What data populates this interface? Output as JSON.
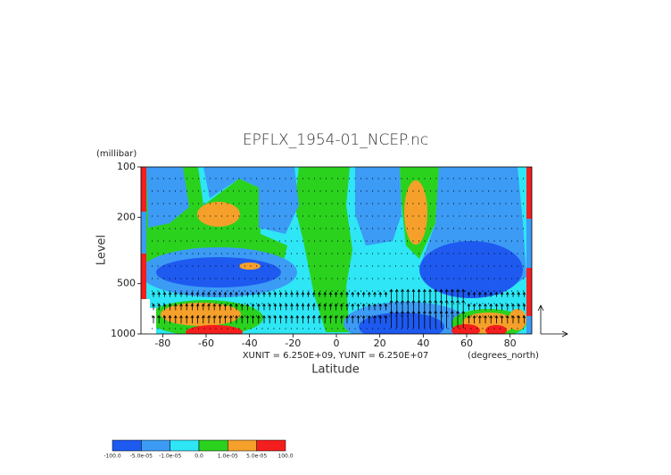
{
  "chart_data": {
    "type": "contour",
    "title": "EPFLX_1954-01_NCEP.nc",
    "x_label": "Latitude",
    "y_label": "Level",
    "y_unit": "(millibar)",
    "x_unit": "(degrees_north)",
    "annotation": "XUNIT = 6.250E+09, YUNIT = 6.250E+07",
    "xlim": [
      -90,
      90
    ],
    "xticks": [
      -80,
      -60,
      -40,
      -20,
      0,
      20,
      40,
      60,
      80
    ],
    "ylim": [
      1000,
      100
    ],
    "yticks": [
      100,
      200,
      500,
      1000
    ],
    "y_log": true,
    "colorbar": {
      "colors": [
        "#1e5af0",
        "#3c9bf5",
        "#2ee6f5",
        "#2ad21e",
        "#f5a02a",
        "#f51e1e"
      ],
      "ticks": [
        {
          "value": -100,
          "label": "-100.0"
        },
        {
          "value": -5e-05,
          "label": "-5.0e-05"
        },
        {
          "value": -1e-05,
          "label": "-1.0e-05"
        },
        {
          "value": 0,
          "label": "0.0"
        },
        {
          "value": 1e-05,
          "label": "1.0e-05"
        },
        {
          "value": 5e-05,
          "label": "5.0e-05"
        },
        {
          "value": 100,
          "label": "100.0"
        }
      ]
    }
  }
}
